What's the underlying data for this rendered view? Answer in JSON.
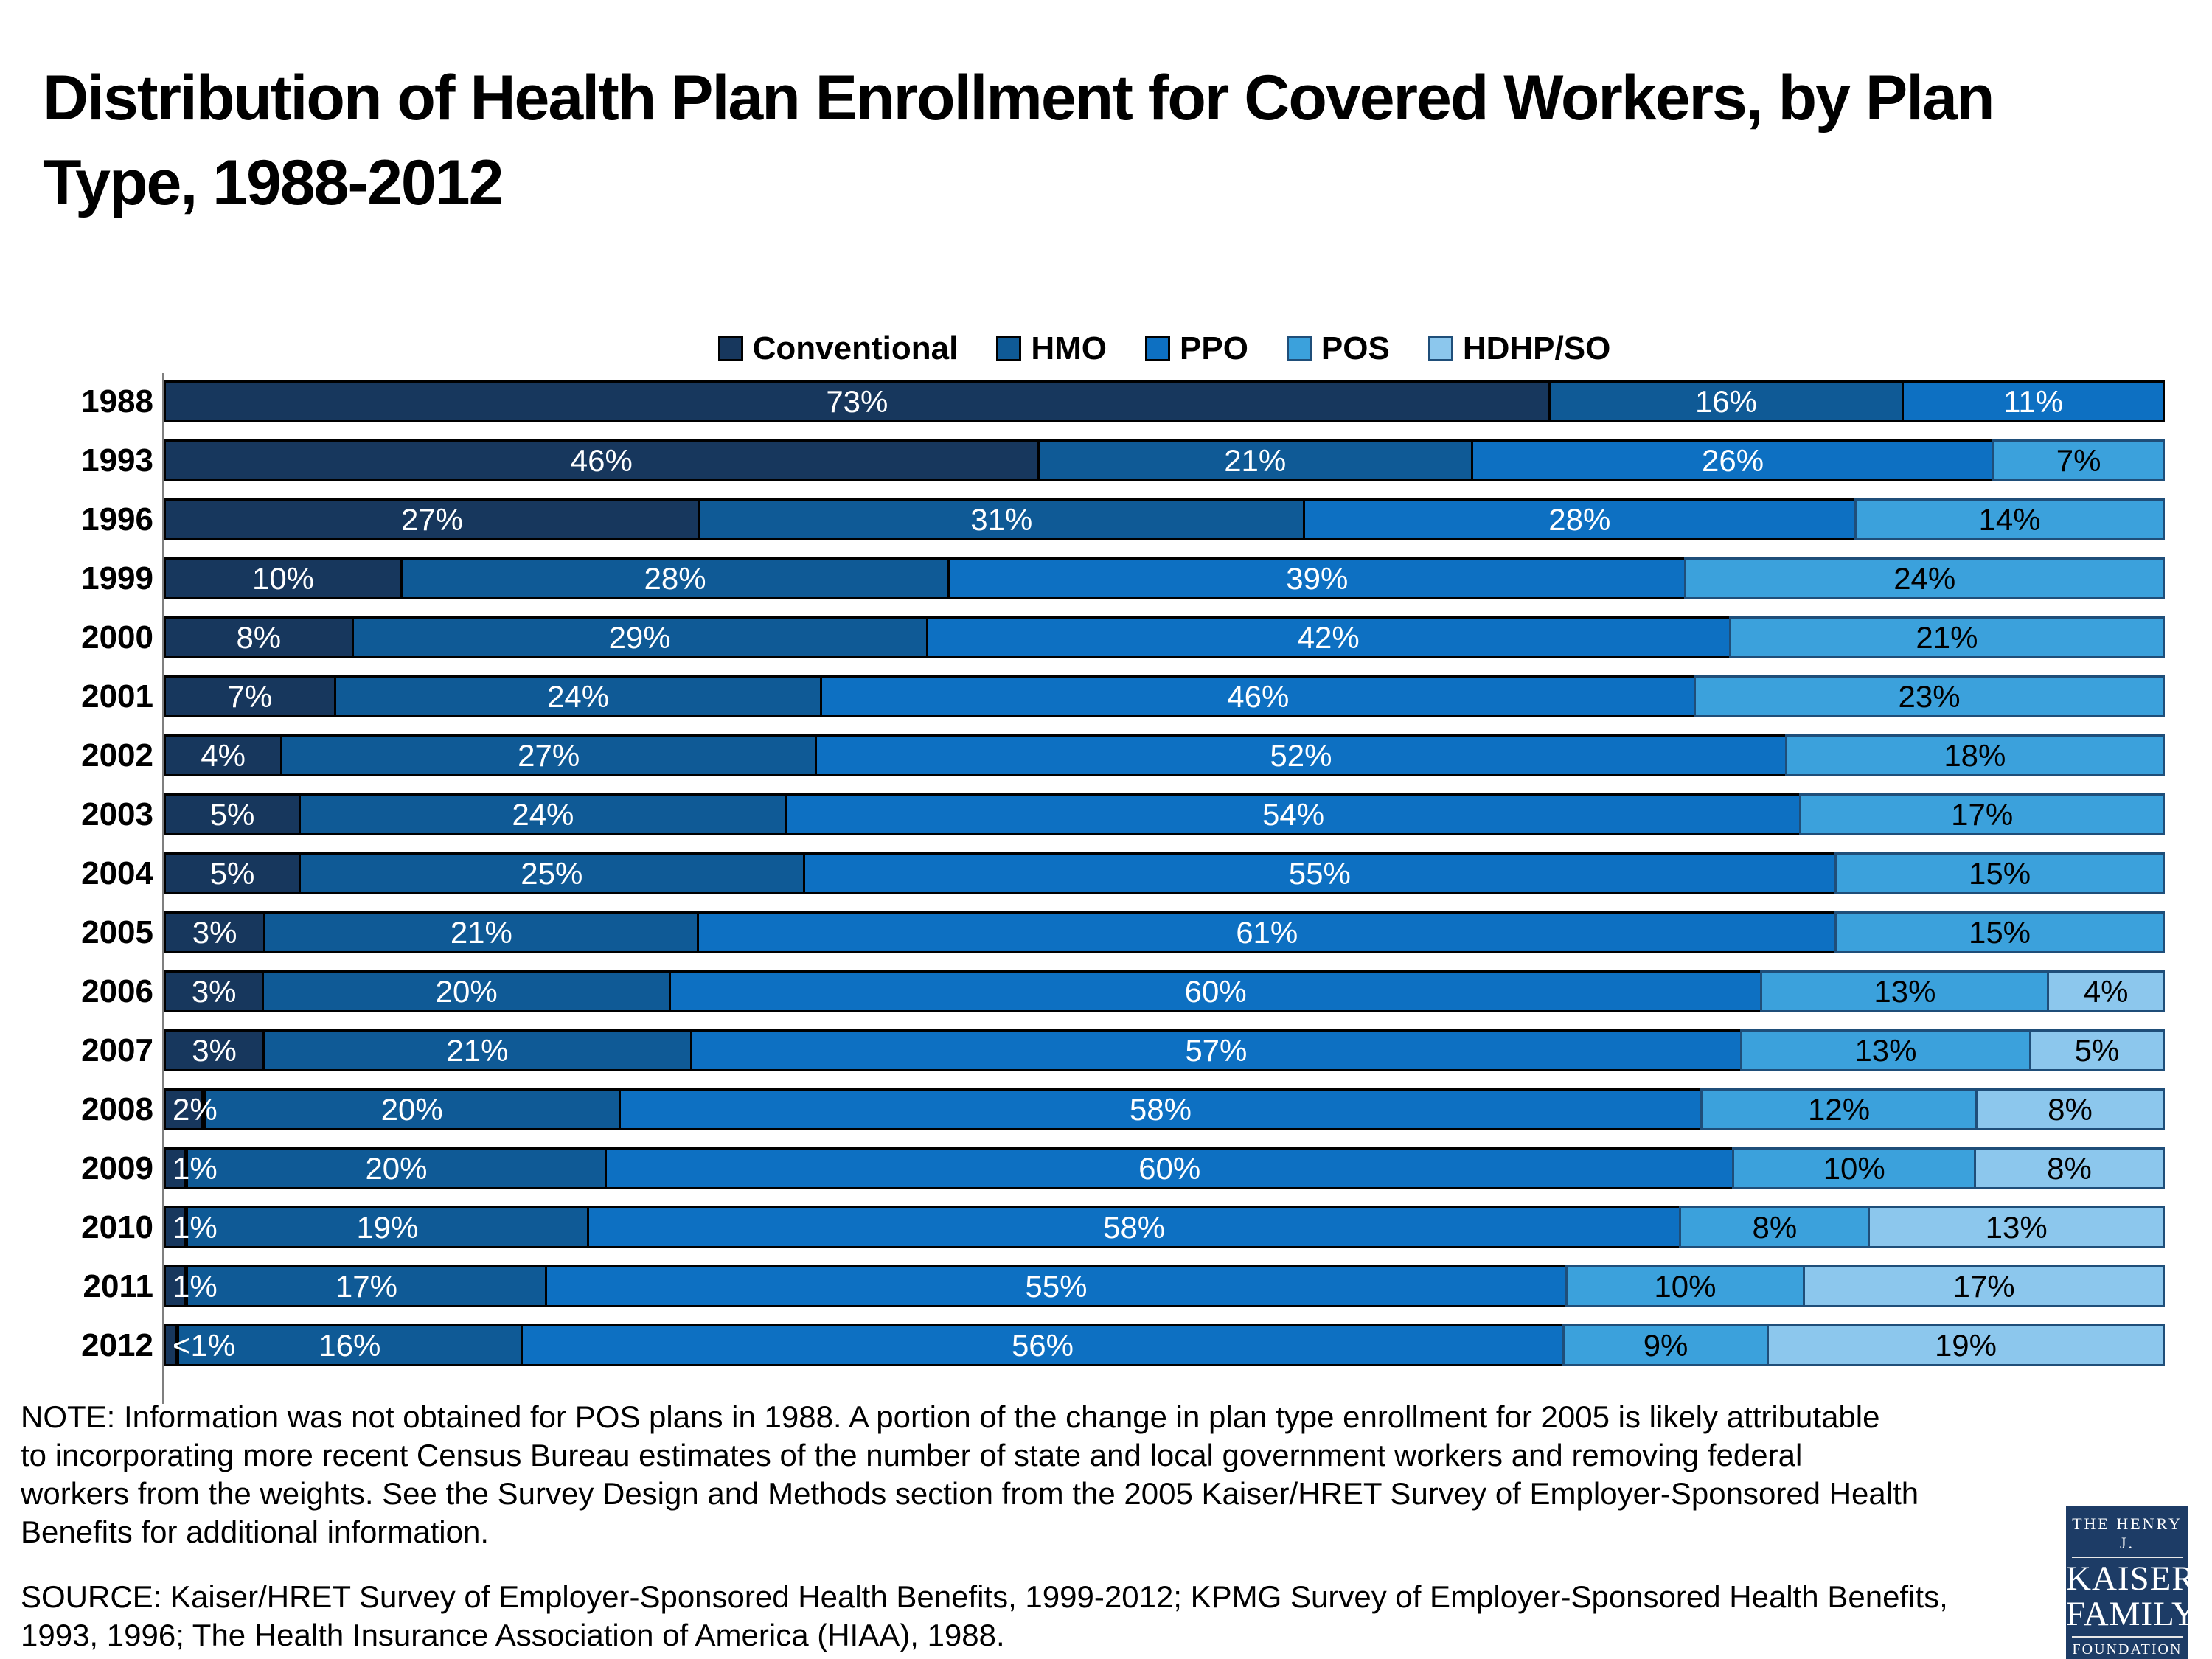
{
  "title": "Distribution of Health Plan Enrollment for Covered Workers, by Plan Type, 1988-2012",
  "legend": {
    "items": [
      {
        "label": "Conventional",
        "color": "#17375d",
        "border": "#000000"
      },
      {
        "label": "HMO",
        "color": "#0f5a96",
        "border": "#000000"
      },
      {
        "label": "PPO",
        "color": "#0d70c2",
        "border": "#000000"
      },
      {
        "label": "POS",
        "color": "#3ba1dc",
        "border": "#1f4e79"
      },
      {
        "label": "HDHP/SO",
        "color": "#8cc7ed",
        "border": "#1f4e79"
      }
    ]
  },
  "chart_data": {
    "type": "bar",
    "stacked": true,
    "orientation": "horizontal",
    "unit": "percent of covered workers",
    "xlim": [
      0,
      100
    ],
    "grid": false,
    "legend_position": "top-center",
    "categories": [
      "1988",
      "1993",
      "1996",
      "1999",
      "2000",
      "2001",
      "2002",
      "2003",
      "2004",
      "2005",
      "2006",
      "2007",
      "2008",
      "2009",
      "2010",
      "2011",
      "2012"
    ],
    "series": [
      {
        "name": "Conventional",
        "color": "#17375d",
        "border": "#000000",
        "label_color": "#ffffff",
        "values": [
          73,
          46,
          27,
          10,
          8,
          7,
          4,
          5,
          5,
          3,
          3,
          3,
          2,
          1,
          1,
          1,
          0.5
        ],
        "labels": [
          "73%",
          "46%",
          "27%",
          "10%",
          "8%",
          "7%",
          "4%",
          "5%",
          "5%",
          "3%",
          "3%",
          "3%",
          "2%",
          "1%",
          "1%",
          "1%",
          "<1%"
        ]
      },
      {
        "name": "HMO",
        "color": "#0f5a96",
        "border": "#000000",
        "label_color": "#ffffff",
        "values": [
          16,
          21,
          31,
          28,
          29,
          24,
          27,
          24,
          25,
          21,
          20,
          21,
          20,
          20,
          19,
          17,
          16
        ],
        "labels": [
          "16%",
          "21%",
          "31%",
          "28%",
          "29%",
          "24%",
          "27%",
          "24%",
          "25%",
          "21%",
          "20%",
          "21%",
          "20%",
          "20%",
          "19%",
          "17%",
          "16%"
        ]
      },
      {
        "name": "PPO",
        "color": "#0d70c2",
        "border": "#000000",
        "label_color": "#ffffff",
        "values": [
          11,
          26,
          28,
          39,
          42,
          46,
          52,
          54,
          55,
          61,
          60,
          57,
          58,
          60,
          58,
          55,
          56
        ],
        "labels": [
          "11%",
          "26%",
          "28%",
          "39%",
          "42%",
          "46%",
          "52%",
          "54%",
          "55%",
          "61%",
          "60%",
          "57%",
          "58%",
          "60%",
          "58%",
          "55%",
          "56%"
        ]
      },
      {
        "name": "POS",
        "color": "#3ba1dc",
        "border": "#1f4e79",
        "label_color": "#000000",
        "values": [
          null,
          7,
          14,
          24,
          21,
          23,
          18,
          17,
          15,
          15,
          13,
          13,
          12,
          10,
          8,
          10,
          9
        ],
        "labels": [
          null,
          "7%",
          "14%",
          "24%",
          "21%",
          "23%",
          "18%",
          "17%",
          "15%",
          "15%",
          "13%",
          "13%",
          "12%",
          "10%",
          "8%",
          "10%",
          "9%"
        ]
      },
      {
        "name": "HDHP/SO",
        "color": "#8cc7ed",
        "border": "#1f4e79",
        "label_color": "#000000",
        "values": [
          null,
          null,
          null,
          null,
          null,
          null,
          null,
          null,
          null,
          null,
          4,
          5,
          8,
          8,
          13,
          17,
          19
        ],
        "labels": [
          null,
          null,
          null,
          null,
          null,
          null,
          null,
          null,
          null,
          null,
          "4%",
          "5%",
          "8%",
          "8%",
          "13%",
          "17%",
          "19%"
        ]
      }
    ]
  },
  "note": {
    "lines": [
      "NOTE: Information was not obtained for POS plans in 1988.  A portion of the change in plan type enrollment for 2005 is likely attributable",
      "to incorporating more recent Census Bureau estimates of the number of state and local government workers and removing federal",
      "workers from the weights.  See the Survey Design and Methods section from the 2005 Kaiser/HRET Survey of Employer-Sponsored Health",
      "Benefits for additional information."
    ]
  },
  "source": {
    "lines": [
      "SOURCE:  Kaiser/HRET Survey of Employer-Sponsored Health Benefits, 1999-2012; KPMG Survey of Employer-Sponsored Health Benefits,",
      "1993, 1996; The Health Insurance Association of America (HIAA), 1988."
    ]
  },
  "logo": {
    "top": "THE HENRY J.",
    "name_line1": "KAISER",
    "name_line2": "FAMILY",
    "bottom": "FOUNDATION"
  }
}
